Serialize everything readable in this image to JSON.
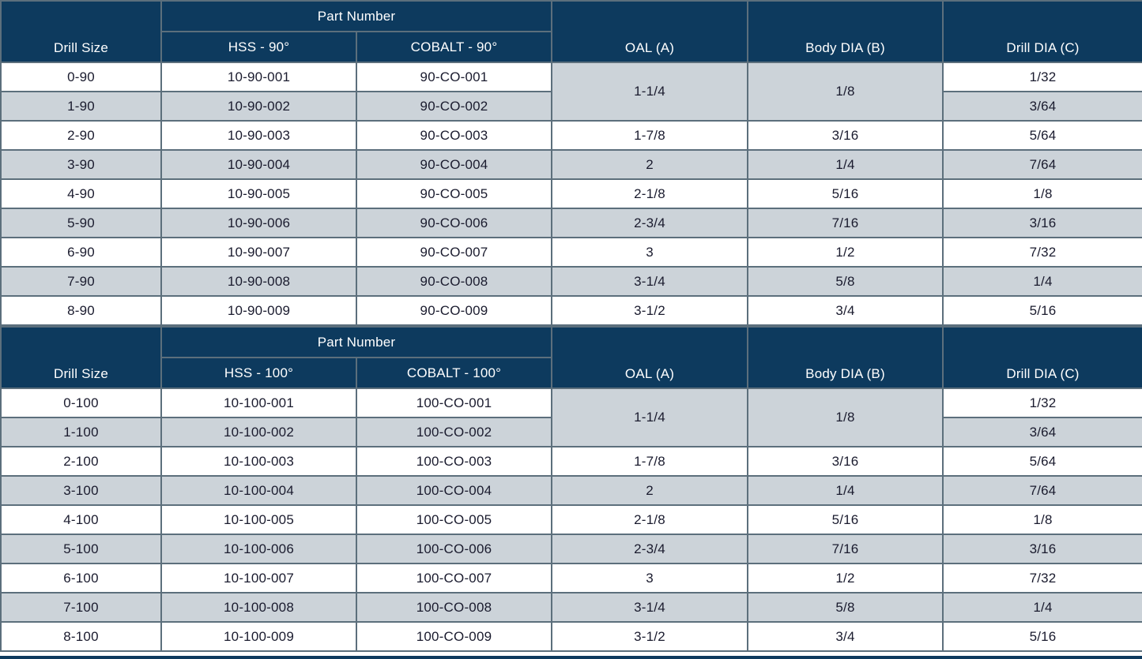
{
  "colors": {
    "header_bg": "#0d3a5e",
    "header_text": "#ffffff",
    "row_bg": "#ffffff",
    "row_alt_bg": "#ccd3d9",
    "grid_line": "#5c6f7c",
    "text": "#1a1b2e"
  },
  "chart_data": {
    "type": "table",
    "note": "Two stacked spec tables for 90-degree and 100-degree drills"
  },
  "tables": [
    {
      "name": "90-degree-drill-table",
      "header": {
        "drill_size": "Drill Size",
        "part_number": "Part Number",
        "hss": "HSS - 90°",
        "cobalt": "COBALT - 90°",
        "oal": "OAL (A)",
        "body_dia": "Body DIA (B)",
        "drill_dia": "Drill DIA (C)"
      },
      "merged": {
        "oal": "1-1/4",
        "body_dia": "1/8"
      },
      "rows": [
        {
          "ds": "0-90",
          "hss": "10-90-001",
          "co": "90-CO-001",
          "dia": "1/32"
        },
        {
          "ds": "1-90",
          "hss": "10-90-002",
          "co": "90-CO-002",
          "dia": "3/64"
        },
        {
          "ds": "2-90",
          "hss": "10-90-003",
          "co": "90-CO-003",
          "oal": "1-7/8",
          "body": "3/16",
          "dia": "5/64"
        },
        {
          "ds": "3-90",
          "hss": "10-90-004",
          "co": "90-CO-004",
          "oal": "2",
          "body": "1/4",
          "dia": "7/64"
        },
        {
          "ds": "4-90",
          "hss": "10-90-005",
          "co": "90-CO-005",
          "oal": "2-1/8",
          "body": "5/16",
          "dia": "1/8"
        },
        {
          "ds": "5-90",
          "hss": "10-90-006",
          "co": "90-CO-006",
          "oal": "2-3/4",
          "body": "7/16",
          "dia": "3/16"
        },
        {
          "ds": "6-90",
          "hss": "10-90-007",
          "co": "90-CO-007",
          "oal": "3",
          "body": "1/2",
          "dia": "7/32"
        },
        {
          "ds": "7-90",
          "hss": "10-90-008",
          "co": "90-CO-008",
          "oal": "3-1/4",
          "body": "5/8",
          "dia": "1/4"
        },
        {
          "ds": "8-90",
          "hss": "10-90-009",
          "co": "90-CO-009",
          "oal": "3-1/2",
          "body": "3/4",
          "dia": "5/16"
        }
      ]
    },
    {
      "name": "100-degree-drill-table",
      "header": {
        "drill_size": "Drill Size",
        "part_number": "Part Number",
        "hss": "HSS - 100°",
        "cobalt": "COBALT - 100°",
        "oal": "OAL (A)",
        "body_dia": "Body DIA (B)",
        "drill_dia": "Drill DIA (C)"
      },
      "merged": {
        "oal": "1-1/4",
        "body_dia": "1/8"
      },
      "rows": [
        {
          "ds": "0-100",
          "hss": "10-100-001",
          "co": "100-CO-001",
          "dia": "1/32"
        },
        {
          "ds": "1-100",
          "hss": "10-100-002",
          "co": "100-CO-002",
          "dia": "3/64"
        },
        {
          "ds": "2-100",
          "hss": "10-100-003",
          "co": "100-CO-003",
          "oal": "1-7/8",
          "body": "3/16",
          "dia": "5/64"
        },
        {
          "ds": "3-100",
          "hss": "10-100-004",
          "co": "100-CO-004",
          "oal": "2",
          "body": "1/4",
          "dia": "7/64"
        },
        {
          "ds": "4-100",
          "hss": "10-100-005",
          "co": "100-CO-005",
          "oal": "2-1/8",
          "body": "5/16",
          "dia": "1/8"
        },
        {
          "ds": "5-100",
          "hss": "10-100-006",
          "co": "100-CO-006",
          "oal": "2-3/4",
          "body": "7/16",
          "dia": "3/16"
        },
        {
          "ds": "6-100",
          "hss": "10-100-007",
          "co": "100-CO-007",
          "oal": "3",
          "body": "1/2",
          "dia": "7/32"
        },
        {
          "ds": "7-100",
          "hss": "10-100-008",
          "co": "100-CO-008",
          "oal": "3-1/4",
          "body": "5/8",
          "dia": "1/4"
        },
        {
          "ds": "8-100",
          "hss": "10-100-009",
          "co": "100-CO-009",
          "oal": "3-1/2",
          "body": "3/4",
          "dia": "5/16"
        }
      ]
    }
  ]
}
